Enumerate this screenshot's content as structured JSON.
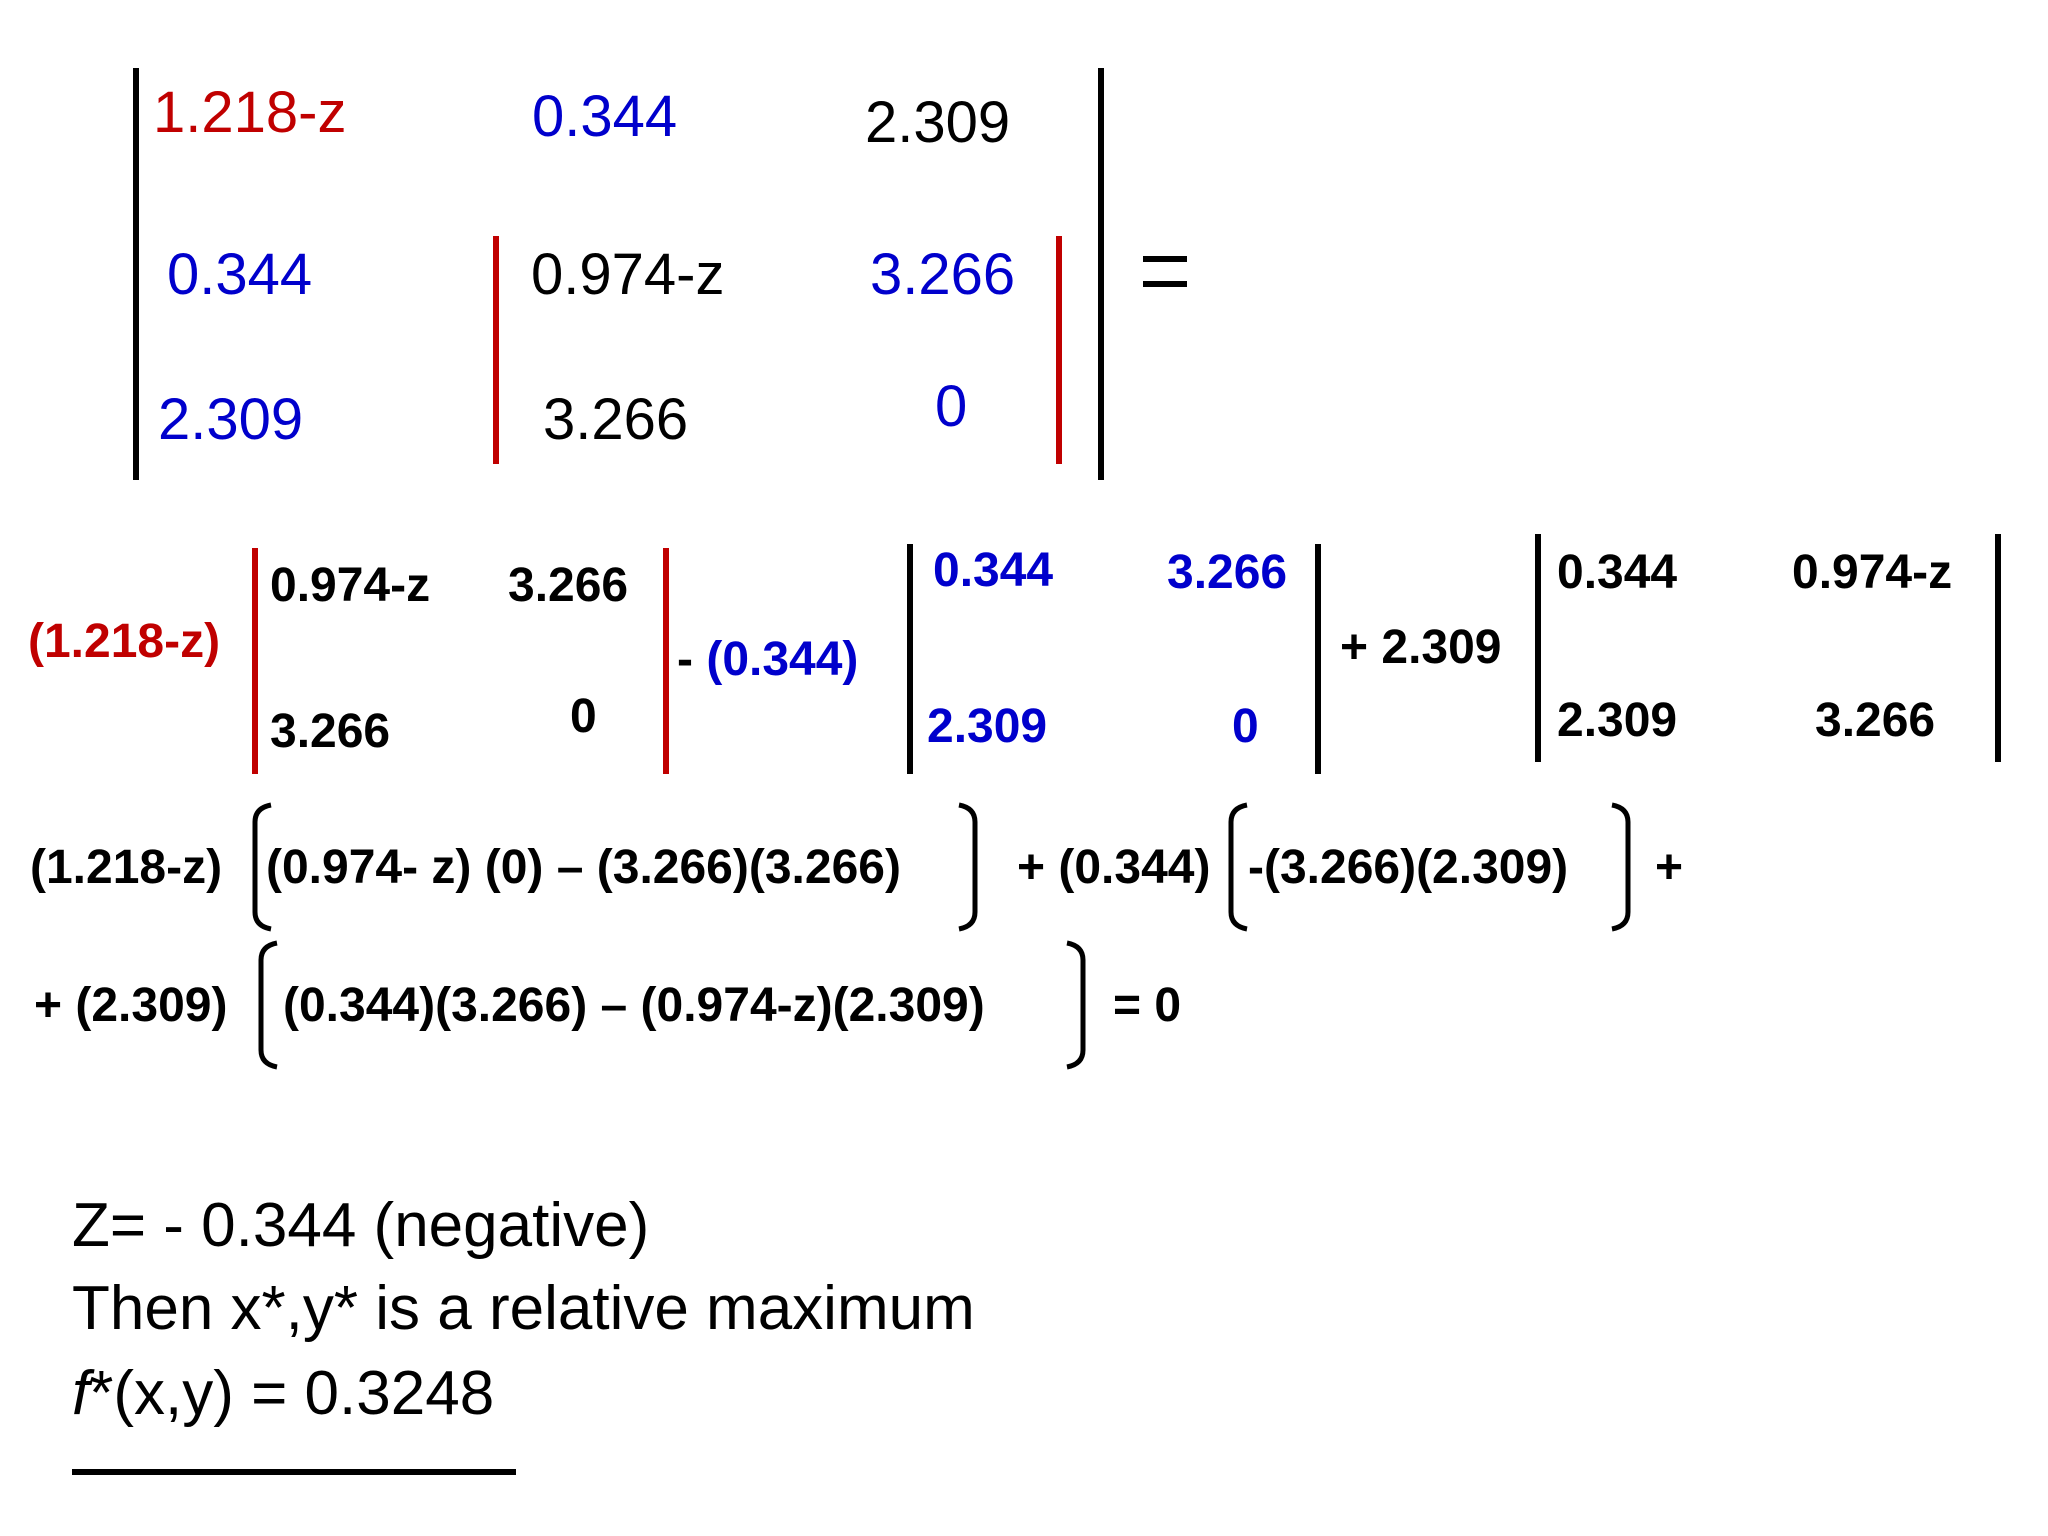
{
  "matrix": {
    "rows": [
      [
        "1.218-z",
        "0.344",
        "2.309"
      ],
      [
        "0.344",
        "0.974-z",
        "3.266"
      ],
      [
        "2.309",
        "3.266",
        "0"
      ]
    ],
    "colors": {
      "red": "#c00000",
      "blue": "#0000cc",
      "black": "#000000"
    },
    "equals": "="
  },
  "expansion": {
    "coef1": "(1.218-z)",
    "minor1": [
      [
        "0.974-z",
        "3.266"
      ],
      [
        "3.266",
        "0"
      ]
    ],
    "op2": "- ",
    "coef2": "(0.344)",
    "minor2": [
      [
        "0.344",
        "3.266"
      ],
      [
        "2.309",
        "0"
      ]
    ],
    "coef3": "+ 2.309",
    "minor3": [
      [
        "0.344",
        "0.974-z"
      ],
      [
        "2.309",
        "3.266"
      ]
    ]
  },
  "equation": {
    "line1": {
      "term1_coef": "(1.218-z)",
      "term1_body": "(0.974- z) (0) – (3.266)(3.266)",
      "term2_coef": "+ (0.344)",
      "term2_body": "-(3.266)(2.309)",
      "trail": "+"
    },
    "line2": {
      "term3_coef": "+ (2.309)",
      "term3_body": "(0.344)(3.266) – (0.974-z)(2.309)",
      "result": "= 0"
    }
  },
  "conclusion": {
    "line1": "Z= - 0.344 (negative)",
    "line2": "Then x*,y* is a relative maximum",
    "line3_func": "f",
    "line3_rest": "*(x,y) = 0.3248"
  }
}
